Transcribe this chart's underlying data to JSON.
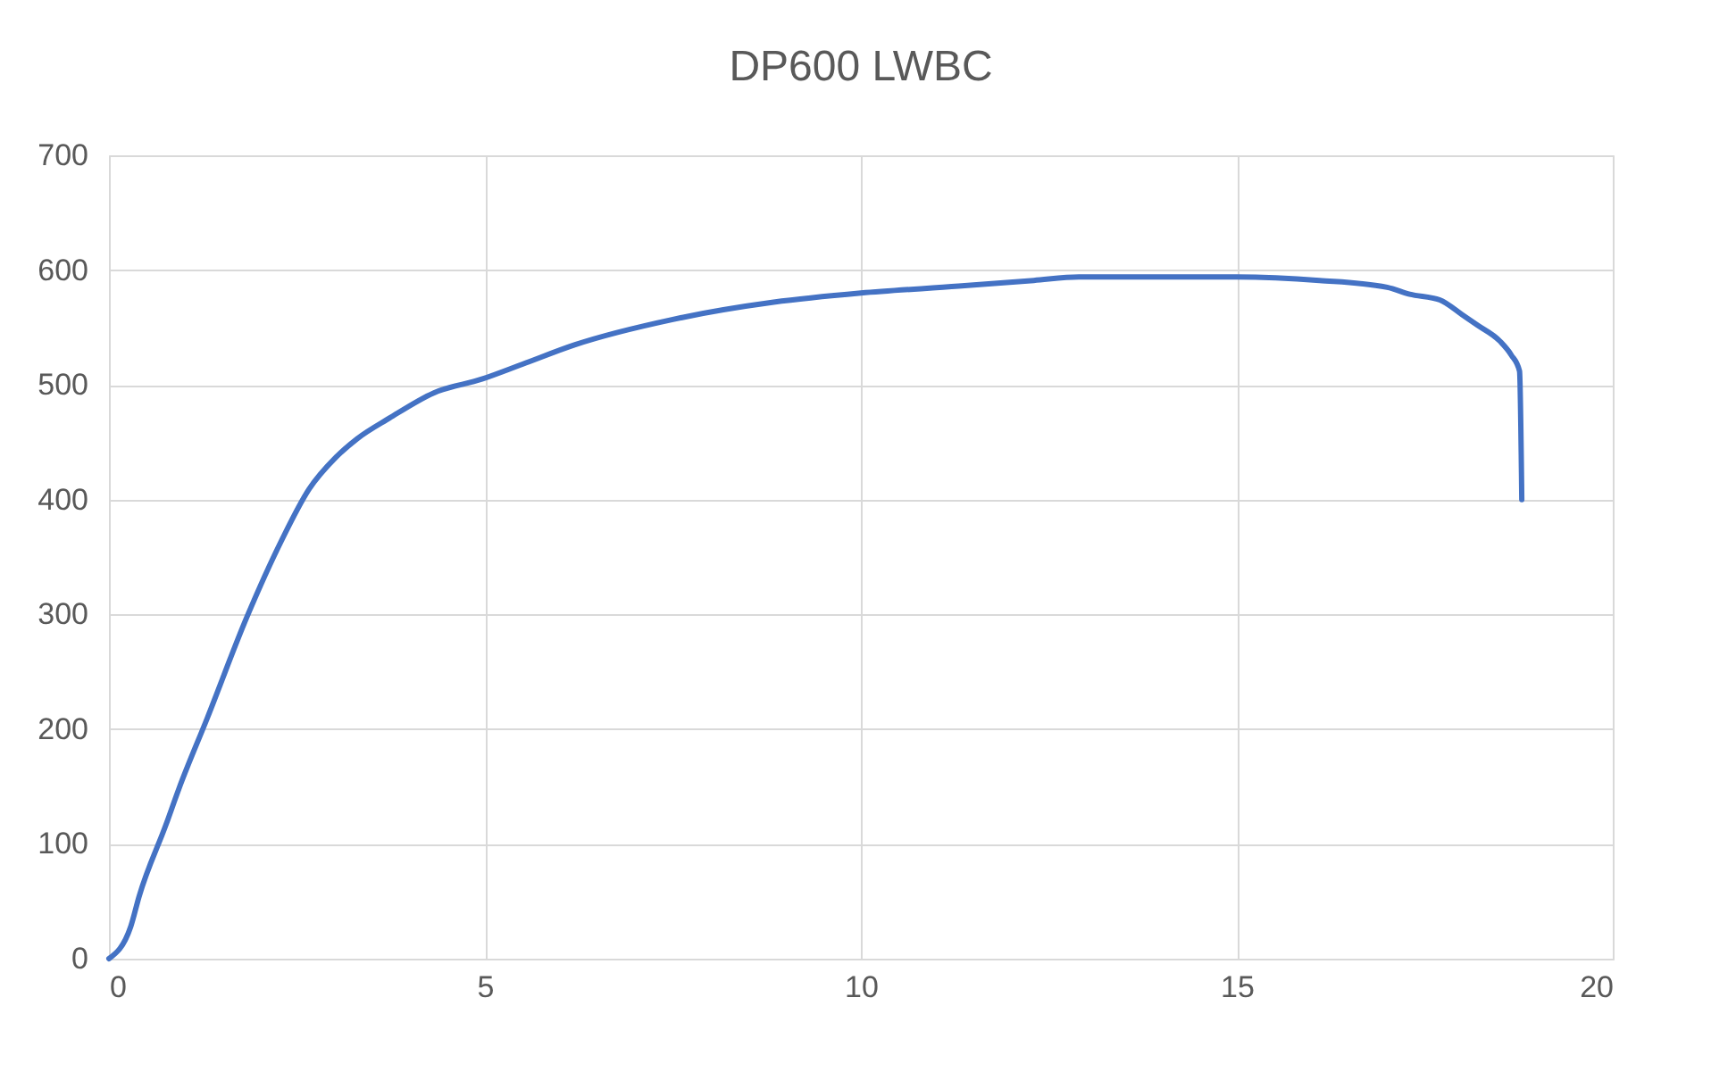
{
  "chart_data": {
    "type": "line",
    "title": "DP600 LWBC",
    "x": [
      0,
      0.29,
      0.4,
      0.76,
      0.93,
      1.31,
      1.83,
      2.3,
      2.66,
      3.02,
      3.3,
      3.73,
      4.32,
      4.96,
      5.5,
      6.2,
      7.5,
      8.84,
      10,
      11.3,
      12.3,
      12.9,
      15,
      16.1,
      17,
      17.3,
      17.7,
      18,
      18.2,
      18.5,
      18.65,
      18.76,
      18.79
    ],
    "series": [
      {
        "color": "#4472c4",
        "values": [
          0,
          28,
          54,
          117,
          148,
          210,
          297,
          365,
          409,
          437,
          453,
          471,
          493,
          505,
          518,
          535,
          557,
          572,
          580,
          586,
          591,
          594,
          594,
          591,
          585,
          579,
          574,
          561,
          552,
          538,
          526,
          512,
          400
        ]
      }
    ],
    "xlim": [
      0,
      20
    ],
    "xticks": [
      0,
      5,
      10,
      15,
      20
    ],
    "ylim": [
      0,
      700
    ],
    "yticks": [
      0,
      100,
      200,
      300,
      400,
      500,
      600,
      700
    ],
    "grid": true,
    "marker": "none",
    "line_style": "solid"
  }
}
